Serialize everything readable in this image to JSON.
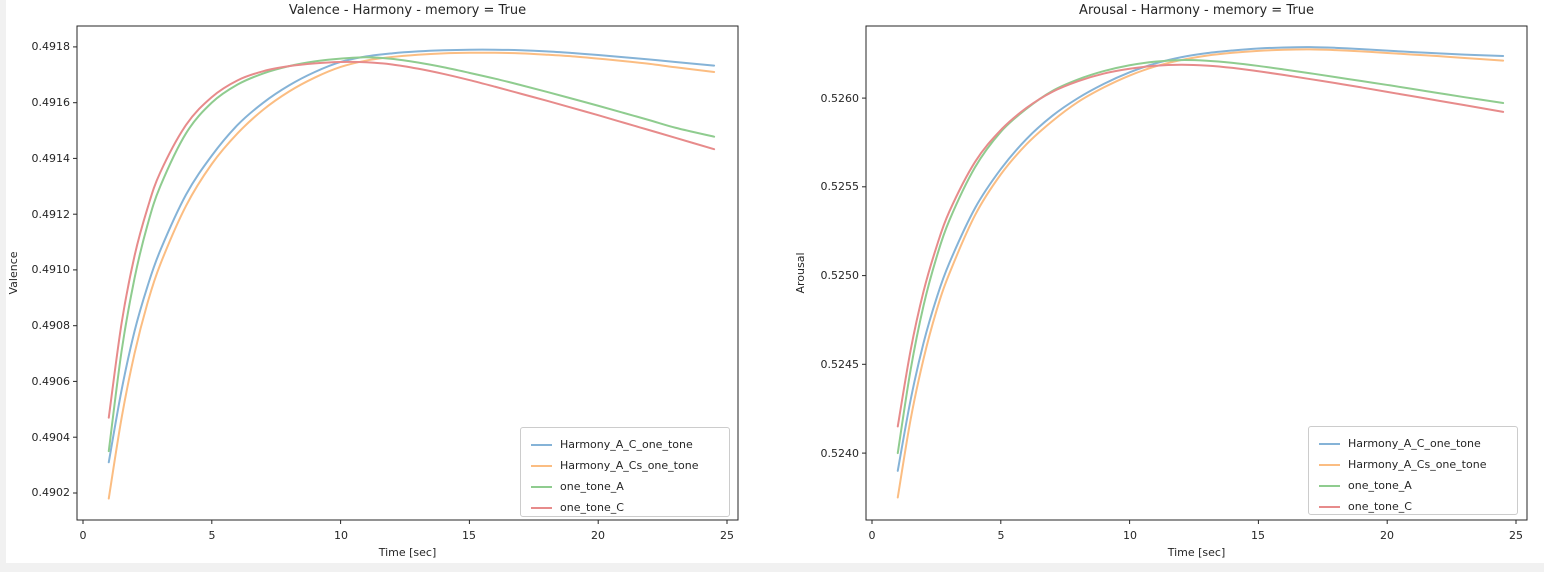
{
  "figure": {
    "background": "#ffffff",
    "edge_strip_color": "#f1f1f1",
    "text_color": "#262626",
    "spine_color": "#262626"
  },
  "chart_data": [
    {
      "type": "line",
      "title": "Valence - Harmony - memory = True",
      "xlabel": "Time [sec]",
      "ylabel": "Valence",
      "xlim": [
        -0.23,
        25.43
      ],
      "ylim": [
        0.490103,
        0.491875
      ],
      "xticks": [
        0,
        5,
        10,
        15,
        20,
        25
      ],
      "yticks": [
        0.4902,
        0.4904,
        0.4906,
        0.4908,
        0.491,
        0.4912,
        0.4914,
        0.4916,
        0.4918
      ],
      "ytick_decimals": 4,
      "grid": false,
      "legend_position": "lower right",
      "x": [
        1,
        1.5,
        2,
        2.5,
        3,
        4,
        5,
        6,
        7,
        8,
        9,
        10,
        11,
        12,
        13,
        14,
        15,
        16,
        17,
        18,
        19,
        20,
        21,
        22,
        23,
        24.5
      ],
      "series": [
        {
          "name": "Harmony_A_C_one_tone",
          "color": "#85B3D7",
          "values": [
            0.49031,
            0.49057,
            0.49078,
            0.49094,
            0.49107,
            0.49127,
            0.49141,
            0.49152,
            0.4916,
            0.491662,
            0.49171,
            0.491746,
            0.491766,
            0.491777,
            0.491784,
            0.491788,
            0.49179,
            0.49179,
            0.491788,
            0.491784,
            0.491778,
            0.491771,
            0.491763,
            0.491755,
            0.491746,
            0.491733
          ]
        },
        {
          "name": "Harmony_A_Cs_one_tone",
          "color": "#FBBD82",
          "values": [
            0.49018,
            0.49047,
            0.4907,
            0.49088,
            0.49102,
            0.49123,
            0.49138,
            0.49149,
            0.491575,
            0.49164,
            0.49169,
            0.491728,
            0.491751,
            0.491764,
            0.491772,
            0.491777,
            0.491779,
            0.491779,
            0.491777,
            0.491772,
            0.491766,
            0.491758,
            0.491749,
            0.491739,
            0.491727,
            0.49171
          ]
        },
        {
          "name": "one_tone_A",
          "color": "#8FCC8F",
          "values": [
            0.49035,
            0.49071,
            0.49097,
            0.49116,
            0.4913,
            0.49149,
            0.4916,
            0.491665,
            0.491705,
            0.491731,
            0.491748,
            0.491758,
            0.491763,
            0.491757,
            0.491744,
            0.491727,
            0.491707,
            0.491686,
            0.491663,
            0.491639,
            0.491614,
            0.491589,
            0.491563,
            0.491537,
            0.49151,
            0.491478
          ]
        },
        {
          "name": "one_tone_C",
          "color": "#E78B8B",
          "values": [
            0.49047,
            0.49081,
            0.49105,
            0.49122,
            0.49135,
            0.49152,
            0.49162,
            0.49168,
            0.491713,
            0.491731,
            0.491741,
            0.491746,
            0.491745,
            0.491737,
            0.491722,
            0.491703,
            0.491681,
            0.491657,
            0.491632,
            0.491607,
            0.491581,
            0.491555,
            0.491528,
            0.491501,
            0.491474,
            0.491433
          ]
        }
      ]
    },
    {
      "type": "line",
      "title": "Arousal - Harmony - memory = True",
      "xlabel": "Time [sec]",
      "ylabel": "Arousal",
      "xlim": [
        -0.23,
        25.43
      ],
      "ylim": [
        0.523623,
        0.526406
      ],
      "xticks": [
        0,
        5,
        10,
        15,
        20,
        25
      ],
      "yticks": [
        0.524,
        0.5245,
        0.525,
        0.5255,
        0.526
      ],
      "ytick_decimals": 4,
      "grid": false,
      "legend_position": "lower right",
      "x": [
        1,
        1.5,
        2,
        2.5,
        3,
        4,
        5,
        6,
        7,
        8,
        9,
        10,
        11,
        12,
        13,
        14,
        15,
        16,
        17,
        18,
        19,
        20,
        21,
        22,
        23,
        24.5
      ],
      "series": [
        {
          "name": "Harmony_A_C_one_tone",
          "color": "#85B3D7",
          "values": [
            0.5239,
            0.5243,
            0.52462,
            0.52487,
            0.52507,
            0.52538,
            0.5256,
            0.52577,
            0.5259,
            0.526,
            0.52608,
            0.526145,
            0.526195,
            0.52623,
            0.526253,
            0.526268,
            0.526279,
            0.526285,
            0.526287,
            0.526283,
            0.526276,
            0.526267,
            0.526259,
            0.526252,
            0.526245,
            0.526237
          ]
        },
        {
          "name": "Harmony_A_Cs_one_tone",
          "color": "#FBBD82",
          "values": [
            0.52375,
            0.52419,
            0.52453,
            0.5248,
            0.52501,
            0.52534,
            0.52557,
            0.52574,
            0.52587,
            0.525978,
            0.52606,
            0.526127,
            0.526178,
            0.526214,
            0.526239,
            0.526255,
            0.526266,
            0.526272,
            0.526274,
            0.52627,
            0.526263,
            0.526254,
            0.526245,
            0.526236,
            0.526226,
            0.526211
          ]
        },
        {
          "name": "one_tone_A",
          "color": "#8FCC8F",
          "values": [
            0.524,
            0.52447,
            0.52483,
            0.5251,
            0.52531,
            0.52561,
            0.52581,
            0.52594,
            0.52604,
            0.526105,
            0.526152,
            0.526185,
            0.526205,
            0.526214,
            0.52621,
            0.526198,
            0.526181,
            0.526161,
            0.52614,
            0.526118,
            0.526096,
            0.526074,
            0.526051,
            0.526028,
            0.526005,
            0.525972
          ]
        },
        {
          "name": "one_tone_C",
          "color": "#E78B8B",
          "values": [
            0.52415,
            0.52458,
            0.52491,
            0.52516,
            0.52536,
            0.52564,
            0.52582,
            0.525945,
            0.526035,
            0.526095,
            0.526138,
            0.526165,
            0.526182,
            0.526188,
            0.526183,
            0.52617,
            0.526151,
            0.52613,
            0.526107,
            0.526084,
            0.52606,
            0.526035,
            0.52601,
            0.525985,
            0.52596,
            0.525922
          ]
        }
      ]
    }
  ]
}
